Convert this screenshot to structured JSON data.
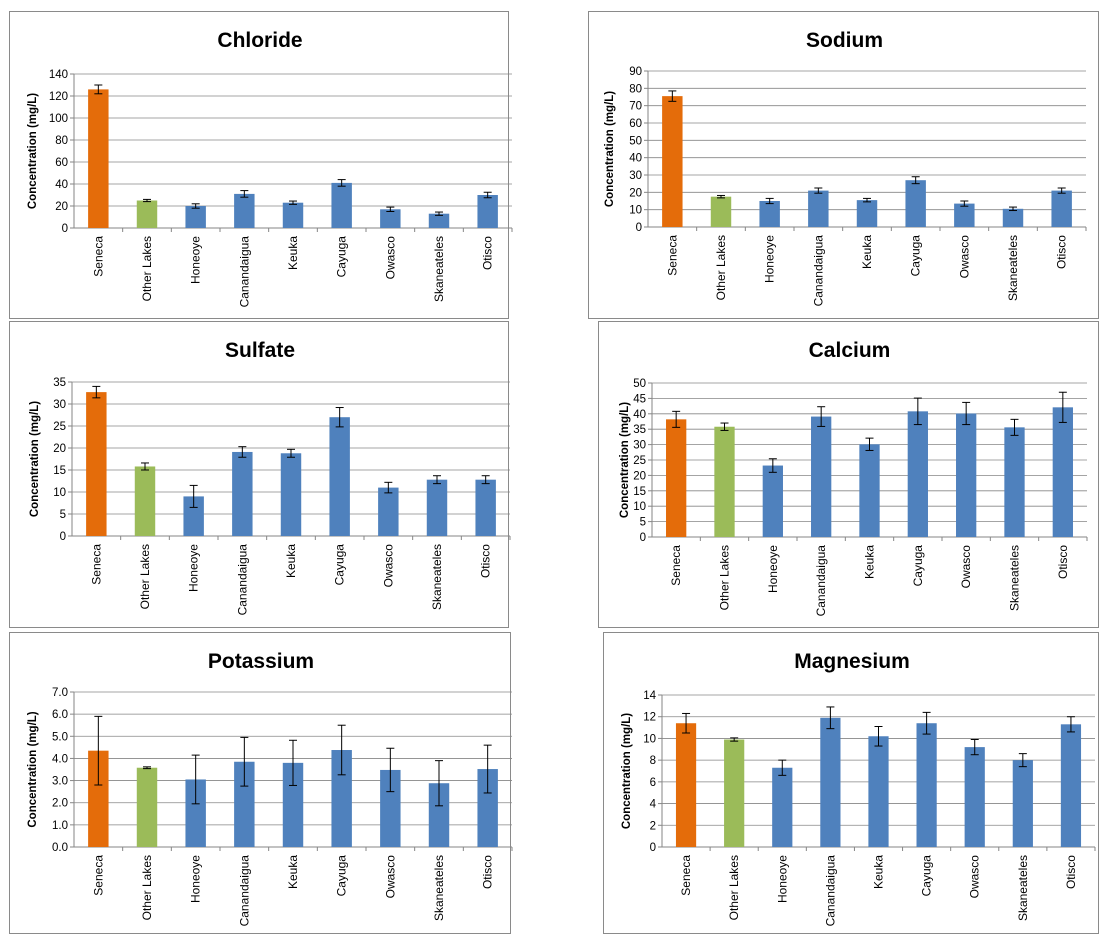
{
  "charts": [
    {
      "type": "bar",
      "title": "Chloride",
      "ylabel": "Concentration (mg/L)",
      "ylim": [
        0,
        140
      ],
      "yticks": [
        "0",
        "20",
        "40",
        "60",
        "80",
        "100",
        "120",
        "140"
      ],
      "categories": [
        "Seneca",
        "Other Lakes",
        "Honeoye",
        "Canandaigua",
        "Keuka",
        "Cayuga",
        "Owasco",
        "Skaneateles",
        "Otisco"
      ],
      "values": [
        126,
        25,
        20,
        31,
        23,
        41,
        17,
        13,
        30
      ],
      "err": [
        4,
        1,
        2,
        3,
        1.5,
        3,
        2,
        1.5,
        2.5
      ],
      "grid": true,
      "legend": "none"
    },
    {
      "type": "bar",
      "title": "Sodium",
      "ylabel": "Concentration (mg/L)",
      "ylim": [
        0,
        90
      ],
      "yticks": [
        "0",
        "10",
        "20",
        "30",
        "40",
        "50",
        "60",
        "70",
        "80",
        "90"
      ],
      "categories": [
        "Seneca",
        "Other Lakes",
        "Honeoye",
        "Canandaigua",
        "Keuka",
        "Cayuga",
        "Owasco",
        "Skaneateles",
        "Otisco"
      ],
      "values": [
        75.5,
        17.5,
        15,
        21,
        15.5,
        27,
        13.5,
        10.5,
        21
      ],
      "err": [
        3,
        0.7,
        1.5,
        1.5,
        1,
        2,
        1.5,
        1,
        1.5
      ],
      "grid": true,
      "legend": "none"
    },
    {
      "type": "bar",
      "title": "Sulfate",
      "ylabel": "Concentration (mg/L)",
      "ylim": [
        0,
        35
      ],
      "yticks": [
        "0",
        "5",
        "10",
        "15",
        "20",
        "25",
        "30",
        "35"
      ],
      "categories": [
        "Seneca",
        "Other Lakes",
        "Honeoye",
        "Canandaigua",
        "Keuka",
        "Cayuga",
        "Owasco",
        "Skaneateles",
        "Otisco"
      ],
      "values": [
        32.7,
        15.8,
        9,
        19.1,
        18.8,
        27,
        11,
        12.8,
        12.8
      ],
      "err": [
        1.3,
        0.8,
        2.5,
        1.2,
        0.9,
        2.2,
        1.2,
        0.9,
        0.9
      ],
      "grid": true,
      "legend": "none"
    },
    {
      "type": "bar",
      "title": "Calcium",
      "ylabel": "Concentration (mg/L)",
      "ylim": [
        0,
        50
      ],
      "yticks": [
        "0",
        "5",
        "10",
        "15",
        "20",
        "25",
        "30",
        "35",
        "40",
        "45",
        "50"
      ],
      "categories": [
        "Seneca",
        "Other Lakes",
        "Honeoye",
        "Canandaigua",
        "Keuka",
        "Cayuga",
        "Owasco",
        "Skaneateles",
        "Otisco"
      ],
      "values": [
        38.2,
        35.8,
        23.2,
        39.1,
        30.1,
        40.8,
        40.1,
        35.6,
        42.1
      ],
      "err": [
        2.6,
        1.2,
        2.2,
        3.2,
        2.0,
        4.3,
        3.6,
        2.6,
        4.9
      ],
      "grid": true,
      "legend": "none"
    },
    {
      "type": "bar",
      "title": "Potassium",
      "ylabel": "Concentration (mg/L)",
      "ylim": [
        0,
        7
      ],
      "yticks": [
        "0.0",
        "1.0",
        "2.0",
        "3.0",
        "4.0",
        "5.0",
        "6.0",
        "7.0"
      ],
      "categories": [
        "Seneca",
        "Other Lakes",
        "Honeoye",
        "Canandaigua",
        "Keuka",
        "Cayuga",
        "Owasco",
        "Skaneateles",
        "Otisco"
      ],
      "values": [
        4.35,
        3.58,
        3.05,
        3.85,
        3.8,
        4.38,
        3.48,
        2.88,
        3.52
      ],
      "err": [
        1.55,
        0.04,
        1.1,
        1.1,
        1.02,
        1.12,
        0.98,
        1.02,
        1.08
      ],
      "grid": true,
      "legend": "none"
    },
    {
      "type": "bar",
      "title": "Magnesium",
      "ylabel": "Concentration (mg/L)",
      "ylim": [
        0,
        14
      ],
      "yticks": [
        "0",
        "2",
        "4",
        "6",
        "8",
        "10",
        "12",
        "14"
      ],
      "categories": [
        "Seneca",
        "Other Lakes",
        "Honeoye",
        "Canandaigua",
        "Keuka",
        "Cayuga",
        "Owasco",
        "Skaneateles",
        "Otisco"
      ],
      "values": [
        11.4,
        9.9,
        7.3,
        11.9,
        10.2,
        11.4,
        9.2,
        8.0,
        11.3
      ],
      "err": [
        0.9,
        0.15,
        0.7,
        1.0,
        0.9,
        1.0,
        0.7,
        0.6,
        0.7
      ],
      "grid": true,
      "legend": "none"
    }
  ],
  "colors": {
    "first_bar": "#E46C0A",
    "second_bar": "#9BBB59",
    "other_bars": "#4F81BD",
    "grid": "#868686"
  }
}
